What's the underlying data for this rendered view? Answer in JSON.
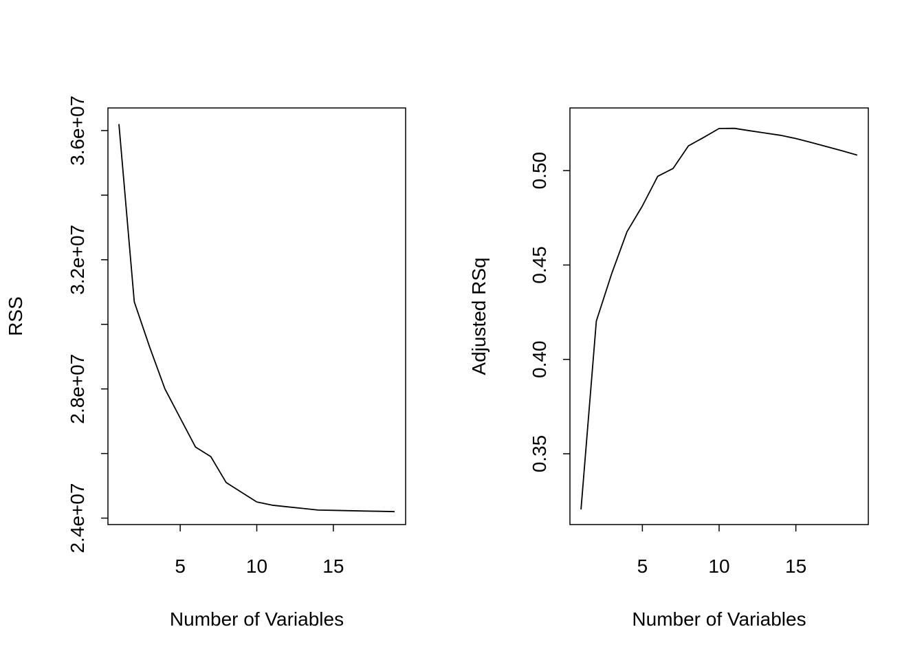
{
  "chart_data": [
    {
      "type": "line",
      "xlabel": "Number of Variables",
      "ylabel": "RSS",
      "xlim": [
        0.28,
        19.72
      ],
      "ylim": [
        23800000,
        36700000
      ],
      "xticks": [
        5,
        10,
        15
      ],
      "xtick_labels": [
        "5",
        "10",
        "15"
      ],
      "yticks": [
        24000000,
        26000000,
        28000000,
        30000000,
        32000000,
        34000000,
        36000000
      ],
      "ytick_labels": [
        "2.4e+07",
        "",
        "2.8e+07",
        "",
        "3.2e+07",
        "",
        "3.6e+07"
      ],
      "grid": false,
      "series": [
        {
          "x": [
            1,
            2,
            3,
            4,
            5,
            6,
            7,
            8,
            9,
            10,
            11,
            12,
            13,
            14,
            15,
            16,
            17,
            18,
            19
          ],
          "values": [
            36200000,
            30700000,
            29300000,
            28000000,
            27100000,
            26200000,
            25900000,
            25100000,
            24800000,
            24500000,
            24400000,
            24350000,
            24300000,
            24250000,
            24240000,
            24230000,
            24220000,
            24210000,
            24200000
          ]
        }
      ]
    },
    {
      "type": "line",
      "xlabel": "Number of Variables",
      "ylabel": "Adjusted RSq",
      "xlim": [
        0.28,
        19.72
      ],
      "ylim": [
        0.3125,
        0.5332
      ],
      "xticks": [
        5,
        10,
        15
      ],
      "xtick_labels": [
        "5",
        "10",
        "15"
      ],
      "yticks": [
        0.35,
        0.4,
        0.45,
        0.5
      ],
      "ytick_labels": [
        "0.35",
        "0.40",
        "0.45",
        "0.50"
      ],
      "grid": false,
      "series": [
        {
          "x": [
            1,
            2,
            3,
            4,
            5,
            6,
            7,
            8,
            9,
            10,
            11,
            12,
            13,
            14,
            15,
            16,
            17,
            18,
            19
          ],
          "values": [
            0.3205,
            0.4203,
            0.4454,
            0.4676,
            0.4813,
            0.497,
            0.5011,
            0.5131,
            0.5176,
            0.5223,
            0.5224,
            0.5211,
            0.5199,
            0.5187,
            0.517,
            0.5149,
            0.5127,
            0.5105,
            0.5082
          ]
        }
      ]
    }
  ]
}
